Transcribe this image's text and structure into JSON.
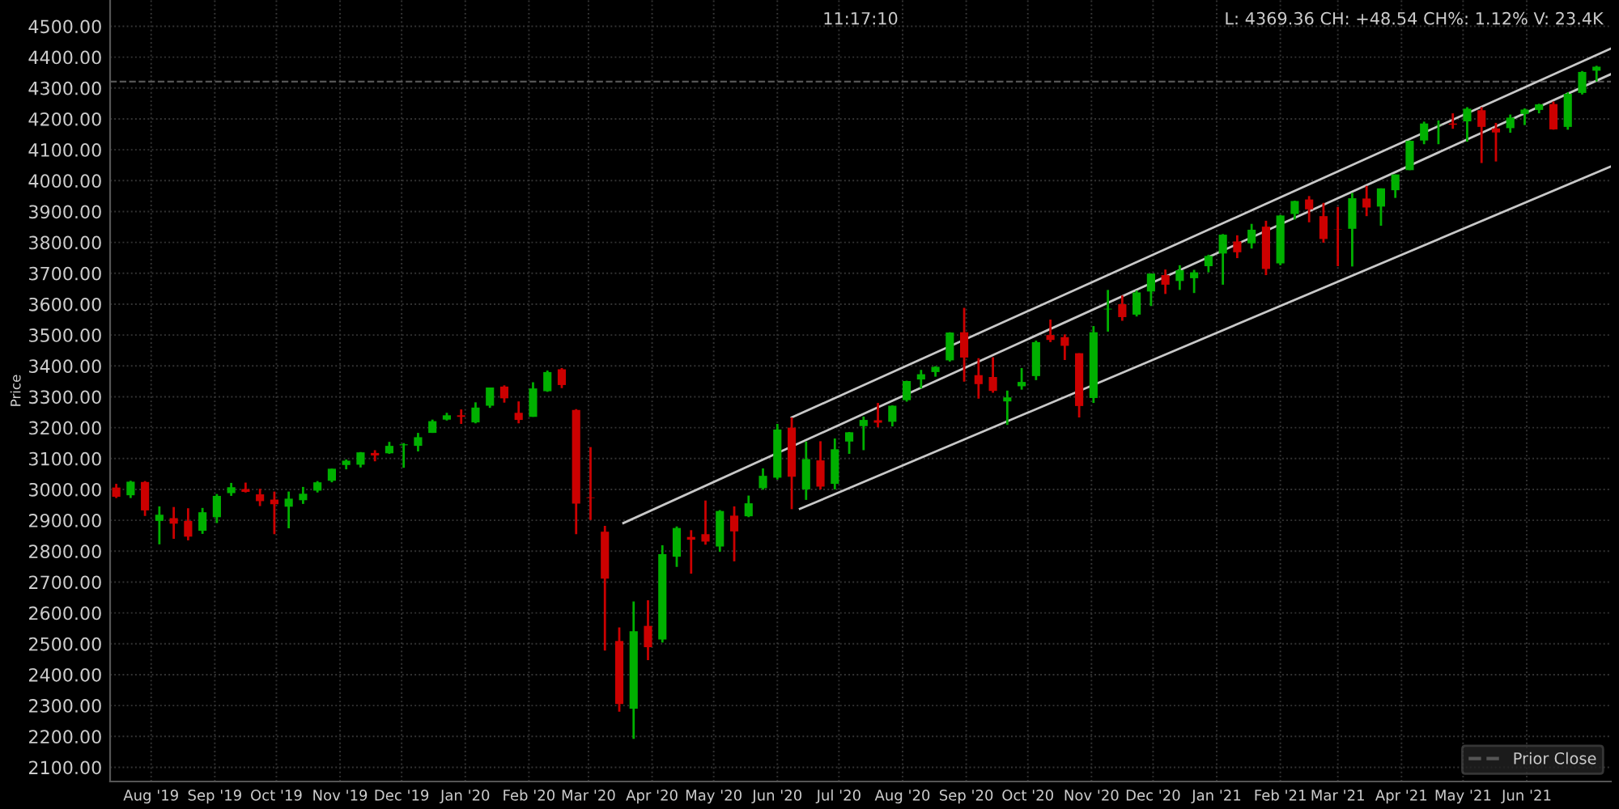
{
  "chart_data": {
    "type": "candlestick",
    "ylabel": "Price",
    "annotations": [
      "11:17:10",
      "L: 4369.36 CH: +48.54 CH%: 1.12% V: 23.4K"
    ],
    "x": [
      "2019-07-15",
      "2019-07-22",
      "2019-07-29",
      "2019-08-05",
      "2019-08-12",
      "2019-08-19",
      "2019-08-26",
      "2019-09-02",
      "2019-09-09",
      "2019-09-16",
      "2019-09-23",
      "2019-09-30",
      "2019-10-07",
      "2019-10-14",
      "2019-10-21",
      "2019-10-28",
      "2019-11-04",
      "2019-11-11",
      "2019-11-18",
      "2019-11-25",
      "2019-12-02",
      "2019-12-09",
      "2019-12-16",
      "2019-12-23",
      "2019-12-30",
      "2020-01-06",
      "2020-01-13",
      "2020-01-20",
      "2020-01-27",
      "2020-02-03",
      "2020-02-10",
      "2020-02-17",
      "2020-02-24",
      "2020-03-02",
      "2020-03-09",
      "2020-03-16",
      "2020-03-23",
      "2020-03-30",
      "2020-04-06",
      "2020-04-13",
      "2020-04-20",
      "2020-04-27",
      "2020-05-04",
      "2020-05-11",
      "2020-05-18",
      "2020-05-25",
      "2020-06-01",
      "2020-06-08",
      "2020-06-15",
      "2020-06-22",
      "2020-06-29",
      "2020-07-06",
      "2020-07-13",
      "2020-07-20",
      "2020-07-27",
      "2020-08-03",
      "2020-08-10",
      "2020-08-17",
      "2020-08-24",
      "2020-08-31",
      "2020-09-07",
      "2020-09-14",
      "2020-09-21",
      "2020-09-28",
      "2020-10-05",
      "2020-10-12",
      "2020-10-19",
      "2020-10-26",
      "2020-11-02",
      "2020-11-09",
      "2020-11-16",
      "2020-11-23",
      "2020-11-30",
      "2020-12-07",
      "2020-12-14",
      "2020-12-21",
      "2020-12-28",
      "2021-01-04",
      "2021-01-11",
      "2021-01-18",
      "2021-01-25",
      "2021-02-01",
      "2021-02-08",
      "2021-02-15",
      "2021-02-22",
      "2021-03-01",
      "2021-03-08",
      "2021-03-15",
      "2021-03-22",
      "2021-03-29",
      "2021-04-05",
      "2021-04-12",
      "2021-04-19",
      "2021-04-26",
      "2021-05-03",
      "2021-05-10",
      "2021-05-17",
      "2021-05-24",
      "2021-05-31",
      "2021-06-07",
      "2021-06-14",
      "2021-06-21",
      "2021-06-28",
      "2021-07-05"
    ],
    "ohlc": [
      [
        3006,
        3018,
        2972,
        2976
      ],
      [
        2981,
        3028,
        2972,
        3025
      ],
      [
        3024,
        3027,
        2914,
        2932
      ],
      [
        2898,
        2945,
        2822,
        2918
      ],
      [
        2907,
        2943,
        2840,
        2889
      ],
      [
        2898,
        2939,
        2835,
        2847
      ],
      [
        2866,
        2940,
        2856,
        2926
      ],
      [
        2910,
        2985,
        2891,
        2979
      ],
      [
        2988,
        3021,
        2979,
        3007
      ],
      [
        3001,
        3022,
        2990,
        2992
      ],
      [
        2984,
        3002,
        2946,
        2962
      ],
      [
        2967,
        2993,
        2855,
        2952
      ],
      [
        2944,
        2993,
        2874,
        2970
      ],
      [
        2965,
        3008,
        2953,
        2986
      ],
      [
        2996,
        3027,
        2990,
        3023
      ],
      [
        3028,
        3067,
        3023,
        3067
      ],
      [
        3079,
        3097,
        3065,
        3093
      ],
      [
        3080,
        3121,
        3071,
        3120
      ],
      [
        3118,
        3127,
        3091,
        3110
      ],
      [
        3117,
        3154,
        3115,
        3141
      ],
      [
        3143,
        3150,
        3070,
        3146
      ],
      [
        3141,
        3183,
        3123,
        3169
      ],
      [
        3183,
        3226,
        3183,
        3221
      ],
      [
        3226,
        3248,
        3223,
        3240
      ],
      [
        3240,
        3259,
        3212,
        3235
      ],
      [
        3217,
        3282,
        3214,
        3265
      ],
      [
        3271,
        3330,
        3264,
        3330
      ],
      [
        3333,
        3337,
        3281,
        3295
      ],
      [
        3248,
        3285,
        3214,
        3225
      ],
      [
        3235,
        3347,
        3235,
        3327
      ],
      [
        3318,
        3385,
        3316,
        3380
      ],
      [
        3389,
        3393,
        3328,
        3338
      ],
      [
        3257,
        3260,
        2855,
        2954
      ],
      [
        2974,
        3137,
        2901,
        2972
      ],
      [
        2863,
        2882,
        2478,
        2711
      ],
      [
        2509,
        2553,
        2280,
        2305
      ],
      [
        2290,
        2637,
        2192,
        2541
      ],
      [
        2558,
        2641,
        2447,
        2489
      ],
      [
        2514,
        2819,
        2504,
        2790
      ],
      [
        2782,
        2880,
        2749,
        2875
      ],
      [
        2846,
        2868,
        2727,
        2837
      ],
      [
        2855,
        2964,
        2821,
        2831
      ],
      [
        2815,
        2933,
        2798,
        2930
      ],
      [
        2915,
        2945,
        2767,
        2864
      ],
      [
        2913,
        2980,
        2910,
        2955
      ],
      [
        3004,
        3068,
        2999,
        3044
      ],
      [
        3038,
        3212,
        3032,
        3194
      ],
      [
        3200,
        3233,
        2936,
        3041
      ],
      [
        3000,
        3155,
        2966,
        3098
      ],
      [
        3094,
        3156,
        3000,
        3009
      ],
      [
        3018,
        3165,
        3000,
        3130
      ],
      [
        3155,
        3186,
        3115,
        3185
      ],
      [
        3205,
        3236,
        3127,
        3225
      ],
      [
        3224,
        3280,
        3201,
        3216
      ],
      [
        3219,
        3272,
        3204,
        3271
      ],
      [
        3289,
        3352,
        3284,
        3351
      ],
      [
        3356,
        3387,
        3327,
        3373
      ],
      [
        3380,
        3399,
        3365,
        3397
      ],
      [
        3418,
        3509,
        3414,
        3508
      ],
      [
        3509,
        3588,
        3349,
        3427
      ],
      [
        3370,
        3425,
        3294,
        3341
      ],
      [
        3364,
        3428,
        3313,
        3319
      ],
      [
        3285,
        3320,
        3209,
        3298
      ],
      [
        3334,
        3393,
        3323,
        3348
      ],
      [
        3367,
        3482,
        3354,
        3477
      ],
      [
        3500,
        3550,
        3477,
        3484
      ],
      [
        3493,
        3502,
        3419,
        3465
      ],
      [
        3441,
        3441,
        3233,
        3270
      ],
      [
        3296,
        3529,
        3280,
        3509
      ],
      [
        3583,
        3646,
        3511,
        3585
      ],
      [
        3600,
        3628,
        3546,
        3558
      ],
      [
        3566,
        3644,
        3560,
        3638
      ],
      [
        3641,
        3699,
        3594,
        3699
      ],
      [
        3694,
        3712,
        3633,
        3663
      ],
      [
        3675,
        3726,
        3646,
        3710
      ],
      [
        3684,
        3711,
        3636,
        3703
      ],
      [
        3723,
        3760,
        3703,
        3756
      ],
      [
        3764,
        3827,
        3663,
        3825
      ],
      [
        3803,
        3823,
        3749,
        3768
      ],
      [
        3797,
        3860,
        3780,
        3841
      ],
      [
        3851,
        3870,
        3694,
        3714
      ],
      [
        3732,
        3889,
        3726,
        3887
      ],
      [
        3892,
        3935,
        3874,
        3934
      ],
      [
        3939,
        3950,
        3865,
        3907
      ],
      [
        3885,
        3928,
        3799,
        3811
      ],
      [
        3842,
        3915,
        3723,
        3841
      ],
      [
        3844,
        3960,
        3722,
        3943
      ],
      [
        3942,
        3983,
        3885,
        3913
      ],
      [
        3916,
        3975,
        3854,
        3975
      ],
      [
        3969,
        4020,
        3944,
        4020
      ],
      [
        4034,
        4130,
        4034,
        4129
      ],
      [
        4130,
        4191,
        4118,
        4185
      ],
      [
        4179,
        4195,
        4118,
        4180
      ],
      [
        4185,
        4218,
        4168,
        4181
      ],
      [
        4192,
        4238,
        4126,
        4233
      ],
      [
        4228,
        4238,
        4057,
        4174
      ],
      [
        4169,
        4187,
        4062,
        4156
      ],
      [
        4170,
        4214,
        4155,
        4204
      ],
      [
        4216,
        4234,
        4180,
        4230
      ],
      [
        4229,
        4249,
        4218,
        4247
      ],
      [
        4248,
        4256,
        4165,
        4166
      ],
      [
        4174,
        4286,
        4165,
        4281
      ],
      [
        4284,
        4355,
        4279,
        4352
      ],
      [
        4356,
        4372,
        4321,
        4369
      ]
    ],
    "colors": [
      "#cc0000",
      "#00b000",
      "#cc0000",
      "#00b000",
      "#cc0000",
      "#cc0000",
      "#00b000",
      "#00b000",
      "#00b000",
      "#cc0000",
      "#cc0000",
      "#cc0000",
      "#00b000",
      "#00b000",
      "#00b000",
      "#00b000",
      "#00b000",
      "#00b000",
      "#cc0000",
      "#00b000",
      "#00b000",
      "#00b000",
      "#00b000",
      "#00b000",
      "#cc0000",
      "#00b000",
      "#00b000",
      "#cc0000",
      "#cc0000",
      "#00b000",
      "#00b000",
      "#cc0000",
      "#cc0000",
      "#cc0000",
      "#cc0000",
      "#cc0000",
      "#00b000",
      "#cc0000",
      "#00b000",
      "#00b000",
      "#cc0000",
      "#cc0000",
      "#00b000",
      "#cc0000",
      "#00b000",
      "#00b000",
      "#00b000",
      "#cc0000",
      "#00b000",
      "#cc0000",
      "#00b000",
      "#00b000",
      "#00b000",
      "#cc0000",
      "#00b000",
      "#00b000",
      "#00b000",
      "#00b000",
      "#00b000",
      "#cc0000",
      "#cc0000",
      "#cc0000",
      "#00b000",
      "#00b000",
      "#00b000",
      "#cc0000",
      "#cc0000",
      "#cc0000",
      "#00b000",
      "#00b000",
      "#cc0000",
      "#00b000",
      "#00b000",
      "#cc0000",
      "#00b000",
      "#00b000",
      "#00b000",
      "#00b000",
      "#cc0000",
      "#00b000",
      "#cc0000",
      "#00b000",
      "#00b000",
      "#cc0000",
      "#cc0000",
      "#cc0000",
      "#00b000",
      "#cc0000",
      "#00b000",
      "#00b000",
      "#00b000",
      "#00b000",
      "#00b000",
      "#cc0000",
      "#00b000",
      "#cc0000",
      "#cc0000",
      "#00b000",
      "#00b000",
      "#00b000",
      "#cc0000",
      "#00b000",
      "#00b000",
      "#00b000"
    ],
    "series": [
      {
        "type": "line",
        "color": "#c8c8c8",
        "x": [
          "2020-06-08",
          "2021-07-12"
        ],
        "values": [
          3233,
          4428
        ]
      },
      {
        "type": "line",
        "color": "#c8c8c8",
        "x": [
          "2020-03-18",
          "2021-07-12"
        ],
        "values": [
          2891,
          4345
        ]
      },
      {
        "type": "line",
        "color": "#c8c8c8",
        "x": [
          "2020-06-12",
          "2021-07-12"
        ],
        "values": [
          2937,
          4046
        ]
      }
    ],
    "ref_lines": [
      {
        "axis": "y",
        "value": 4320.82,
        "label": "Prior Close",
        "color": "#555555",
        "line_style": "dashed"
      }
    ],
    "xlim": [
      "2019-07-12",
      "2021-07-12"
    ],
    "xticks": [
      {
        "value": "2019-08-01",
        "label": "Aug '19"
      },
      {
        "value": "2019-09-01",
        "label": "Sep '19"
      },
      {
        "value": "2019-10-01",
        "label": "Oct '19"
      },
      {
        "value": "2019-11-01",
        "label": "Nov '19"
      },
      {
        "value": "2019-12-01",
        "label": "Dec '19"
      },
      {
        "value": "2020-01-01",
        "label": "Jan '20"
      },
      {
        "value": "2020-02-01",
        "label": "Feb '20"
      },
      {
        "value": "2020-03-01",
        "label": "Mar '20"
      },
      {
        "value": "2020-04-01",
        "label": "Apr '20"
      },
      {
        "value": "2020-05-01",
        "label": "May '20"
      },
      {
        "value": "2020-06-01",
        "label": "Jun '20"
      },
      {
        "value": "2020-07-01",
        "label": "Jul '20"
      },
      {
        "value": "2020-08-01",
        "label": "Aug '20"
      },
      {
        "value": "2020-09-01",
        "label": "Sep '20"
      },
      {
        "value": "2020-10-01",
        "label": "Oct '20"
      },
      {
        "value": "2020-11-01",
        "label": "Nov '20"
      },
      {
        "value": "2020-12-01",
        "label": "Dec '20"
      },
      {
        "value": "2021-01-01",
        "label": "Jan '21"
      },
      {
        "value": "2021-02-01",
        "label": "Feb '21"
      },
      {
        "value": "2021-03-01",
        "label": "Mar '21"
      },
      {
        "value": "2021-04-01",
        "label": "Apr '21"
      },
      {
        "value": "2021-05-01",
        "label": "May '21"
      },
      {
        "value": "2021-06-01",
        "label": "Jun '21"
      }
    ],
    "ylim": [
      2054,
      4585
    ],
    "yticks": [
      {
        "value": 2100,
        "label": "2100.00"
      },
      {
        "value": 2200,
        "label": "2200.00"
      },
      {
        "value": 2300,
        "label": "2300.00"
      },
      {
        "value": 2400,
        "label": "2400.00"
      },
      {
        "value": 2500,
        "label": "2500.00"
      },
      {
        "value": 2600,
        "label": "2600.00"
      },
      {
        "value": 2700,
        "label": "2700.00"
      },
      {
        "value": 2800,
        "label": "2800.00"
      },
      {
        "value": 2900,
        "label": "2900.00"
      },
      {
        "value": 3000,
        "label": "3000.00"
      },
      {
        "value": 3100,
        "label": "3100.00"
      },
      {
        "value": 3200,
        "label": "3200.00"
      },
      {
        "value": 3300,
        "label": "3300.00"
      },
      {
        "value": 3400,
        "label": "3400.00"
      },
      {
        "value": 3500,
        "label": "3500.00"
      },
      {
        "value": 3600,
        "label": "3600.00"
      },
      {
        "value": 3700,
        "label": "3700.00"
      },
      {
        "value": 3800,
        "label": "3800.00"
      },
      {
        "value": 3900,
        "label": "3900.00"
      },
      {
        "value": 4000,
        "label": "4000.00"
      },
      {
        "value": 4100,
        "label": "4100.00"
      },
      {
        "value": 4200,
        "label": "4200.00"
      },
      {
        "value": 4300,
        "label": "4300.00"
      },
      {
        "value": 4400,
        "label": "4400.00"
      },
      {
        "value": 4500,
        "label": "4500.00"
      }
    ],
    "grid": true,
    "legend": "bottom right"
  }
}
